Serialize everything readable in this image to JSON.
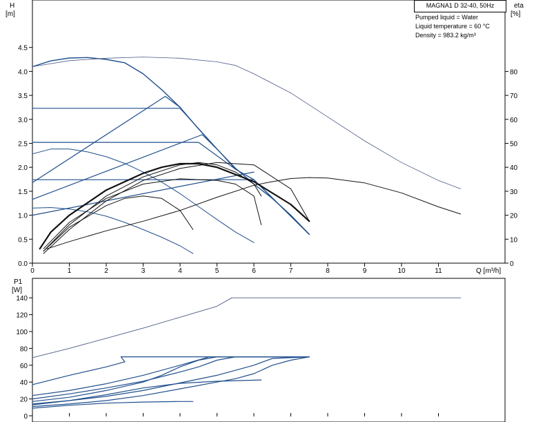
{
  "header": {
    "model": "MAGNA1 D 32-40, 50Hz",
    "info": [
      "Pumped liquid = Water",
      "Liquid temperature = 60 °C",
      "Density = 983.2 kg/m³"
    ]
  },
  "chart_data": [
    {
      "type": "line",
      "panel": "head",
      "ylabel": "H",
      "yunit": "[m]",
      "y2label": "eta",
      "y2unit": "[%]",
      "xlabel": "Q [m³/h]",
      "xlim": [
        0,
        12.5
      ],
      "ylim": [
        0,
        4.75
      ],
      "y2lim": [
        0,
        95
      ],
      "xticks": [
        0,
        1,
        2,
        3,
        4,
        5,
        6,
        7,
        8,
        9,
        10,
        11
      ],
      "yticks": [
        0.0,
        0.5,
        1.0,
        1.5,
        2.0,
        2.5,
        3.0,
        3.5,
        4.0,
        4.5
      ],
      "y2ticks": [
        0,
        10,
        20,
        30,
        40,
        50,
        60,
        70,
        80
      ],
      "grid": false,
      "series": [
        {
          "kind": "head-max",
          "points": [
            [
              0,
              4.1
            ],
            [
              0.5,
              4.22
            ],
            [
              1.0,
              4.28
            ],
            [
              1.5,
              4.29
            ],
            [
              2.0,
              4.25
            ],
            [
              2.5,
              4.18
            ],
            [
              3.0,
              3.95
            ],
            [
              3.5,
              3.62
            ],
            [
              4.0,
              3.25
            ],
            [
              4.5,
              2.8
            ],
            [
              5.0,
              2.38
            ],
            [
              5.5,
              1.98
            ],
            [
              6.0,
              1.65
            ],
            [
              6.5,
              1.35
            ],
            [
              7.0,
              1.0
            ],
            [
              7.5,
              0.6
            ]
          ]
        },
        {
          "kind": "head-speed",
          "points": [
            [
              0,
              2.28
            ],
            [
              0.5,
              2.38
            ],
            [
              1.0,
              2.38
            ],
            [
              1.5,
              2.32
            ],
            [
              2.0,
              2.22
            ],
            [
              2.5,
              2.08
            ],
            [
              3.0,
              1.9
            ],
            [
              3.5,
              1.69
            ],
            [
              4.0,
              1.45
            ],
            [
              4.5,
              1.18
            ],
            [
              5.0,
              0.91
            ],
            [
              5.5,
              0.65
            ],
            [
              6.0,
              0.43
            ]
          ]
        },
        {
          "kind": "head-speed",
          "points": [
            [
              0,
              1.15
            ],
            [
              0.5,
              1.16
            ],
            [
              1.0,
              1.13
            ],
            [
              1.5,
              1.07
            ],
            [
              2.0,
              0.98
            ],
            [
              2.5,
              0.85
            ],
            [
              3.0,
              0.7
            ],
            [
              3.5,
              0.54
            ],
            [
              4.0,
              0.36
            ],
            [
              4.35,
              0.2
            ]
          ]
        },
        {
          "kind": "constant-pressure",
          "points": [
            [
              0,
              3.23
            ],
            [
              4.0,
              3.23
            ],
            [
              5.5,
              1.96
            ],
            [
              6.0,
              1.74
            ],
            [
              7.5,
              0.6
            ]
          ]
        },
        {
          "kind": "constant-pressure",
          "points": [
            [
              0,
              2.52
            ],
            [
              4.5,
              2.52
            ],
            [
              5.5,
              1.96
            ],
            [
              6.0,
              1.74
            ],
            [
              7.5,
              0.6
            ]
          ]
        },
        {
          "kind": "constant-pressure",
          "points": [
            [
              0,
              1.74
            ],
            [
              6.0,
              1.74
            ],
            [
              7.5,
              0.6
            ]
          ]
        },
        {
          "kind": "proportional-pressure",
          "points": [
            [
              0,
              1.68
            ],
            [
              3.6,
              3.48
            ],
            [
              4.0,
              3.25
            ]
          ]
        },
        {
          "kind": "proportional-pressure",
          "points": [
            [
              0,
              1.33
            ],
            [
              4.6,
              2.68
            ],
            [
              5.0,
              2.38
            ]
          ]
        },
        {
          "kind": "proportional-pressure",
          "points": [
            [
              0,
              1.0
            ],
            [
              6.0,
              1.9
            ]
          ]
        },
        {
          "kind": "eta",
          "axis": "y2",
          "points": [
            [
              0,
              82
            ],
            [
              1,
              84.5
            ],
            [
              2,
              85.5
            ],
            [
              3,
              86
            ],
            [
              4,
              85.5
            ],
            [
              5,
              84
            ],
            [
              5.5,
              82.5
            ],
            [
              6,
              79
            ],
            [
              7,
              71
            ],
            [
              8,
              61
            ],
            [
              9,
              51
            ],
            [
              10,
              42
            ],
            [
              11,
              34.5
            ],
            [
              11.6,
              31
            ]
          ]
        },
        {
          "kind": "eta",
          "axis": "y2",
          "points": [
            [
              0.4,
              6
            ],
            [
              1,
              9
            ],
            [
              2,
              13.5
            ],
            [
              3,
              17.5
            ],
            [
              4,
              22
            ],
            [
              5,
              27.5
            ],
            [
              6,
              32.5
            ],
            [
              6.5,
              34
            ],
            [
              7,
              35.3
            ],
            [
              7.5,
              35.7
            ],
            [
              8,
              35.5
            ],
            [
              9,
              33.5
            ],
            [
              10,
              29.3
            ],
            [
              11,
              23.5
            ],
            [
              11.6,
              20.5
            ]
          ]
        },
        {
          "kind": "eta",
          "axis": "y2",
          "bold": true,
          "points": [
            [
              0.2,
              6
            ],
            [
              0.5,
              13
            ],
            [
              1,
              20
            ],
            [
              2,
              30.5
            ],
            [
              3,
              37.5
            ],
            [
              3.5,
              40
            ],
            [
              4,
              41.5
            ],
            [
              4.5,
              41.5
            ],
            [
              5,
              40
            ],
            [
              6,
              34
            ],
            [
              7,
              24.5
            ],
            [
              7.5,
              17.5
            ]
          ]
        },
        {
          "kind": "eta",
          "axis": "y2",
          "points": [
            [
              0.3,
              6
            ],
            [
              1,
              17
            ],
            [
              2,
              27
            ],
            [
              3,
              33
            ],
            [
              4,
              35.2
            ],
            [
              5,
              34.5
            ],
            [
              5.5,
              33
            ],
            [
              6,
              28
            ],
            [
              6.2,
              16
            ]
          ]
        },
        {
          "kind": "eta",
          "axis": "y2",
          "points": [
            [
              0.3,
              5
            ],
            [
              1,
              16
            ],
            [
              2,
              28
            ],
            [
              3,
              36
            ],
            [
              4,
              41
            ],
            [
              4.5,
              42
            ],
            [
              5,
              41
            ],
            [
              5.5,
              38
            ],
            [
              6,
              33
            ],
            [
              6.2,
              28
            ]
          ]
        },
        {
          "kind": "eta",
          "axis": "y2",
          "points": [
            [
              0.3,
              5
            ],
            [
              1,
              15
            ],
            [
              2,
              24
            ],
            [
              2.5,
              27
            ],
            [
              3,
              28
            ],
            [
              3.5,
              27
            ],
            [
              4,
              22
            ],
            [
              4.35,
              14
            ]
          ]
        },
        {
          "kind": "eta",
          "axis": "y2",
          "points": [
            [
              0.3,
              4
            ],
            [
              1,
              14
            ],
            [
              2,
              26
            ],
            [
              3,
              34.5
            ],
            [
              4,
              39.5
            ],
            [
              5,
              42
            ],
            [
              6,
              41
            ],
            [
              7,
              31
            ],
            [
              7.5,
              17.5
            ]
          ]
        }
      ]
    },
    {
      "type": "line",
      "panel": "power",
      "ylabel": "P1",
      "yunit": "[W]",
      "xlim": [
        0,
        12.5
      ],
      "ylim": [
        0,
        150
      ],
      "yticks": [
        0,
        20,
        40,
        60,
        80,
        100,
        120,
        140
      ],
      "grid": false,
      "series": [
        {
          "kind": "power-max",
          "points": [
            [
              0,
              69
            ],
            [
              1,
              80
            ],
            [
              2,
              92
            ],
            [
              3,
              104
            ],
            [
              4,
              117
            ],
            [
              5,
              130
            ],
            [
              5.4,
              140
            ],
            [
              11.6,
              140
            ]
          ]
        },
        {
          "kind": "power",
          "points": [
            [
              0,
              37
            ],
            [
              1,
              48
            ],
            [
              2,
              58
            ],
            [
              2.5,
              64
            ],
            [
              2.4,
              70
            ],
            [
              7.5,
              70
            ]
          ]
        },
        {
          "kind": "power",
          "points": [
            [
              0,
              24
            ],
            [
              1,
              30
            ],
            [
              2,
              38
            ],
            [
              3,
              48
            ],
            [
              4,
              60
            ],
            [
              4.8,
              70
            ],
            [
              7.5,
              70
            ]
          ]
        },
        {
          "kind": "power",
          "points": [
            [
              0,
              20
            ],
            [
              1,
              26
            ],
            [
              2,
              33
            ],
            [
              3,
              41
            ],
            [
              4,
              52
            ],
            [
              4.5,
              58
            ],
            [
              5,
              66
            ],
            [
              5.5,
              70
            ],
            [
              7.5,
              70
            ]
          ]
        },
        {
          "kind": "power",
          "points": [
            [
              0,
              17
            ],
            [
              1,
              22
            ],
            [
              2,
              30
            ],
            [
              3,
              40
            ],
            [
              3.5,
              48
            ],
            [
              4,
              58
            ],
            [
              4.5,
              66
            ],
            [
              5,
              70
            ],
            [
              7.5,
              70
            ]
          ]
        },
        {
          "kind": "power",
          "points": [
            [
              0,
              14
            ],
            [
              1,
              18
            ],
            [
              2,
              23
            ],
            [
              3,
              30
            ],
            [
              4,
              39
            ],
            [
              5,
              48
            ],
            [
              6,
              60
            ],
            [
              6.5,
              68
            ],
            [
              7.5,
              70
            ]
          ]
        },
        {
          "kind": "power",
          "points": [
            [
              0,
              11
            ],
            [
              1,
              14
            ],
            [
              2,
              18
            ],
            [
              3,
              24
            ],
            [
              4,
              32
            ],
            [
              5,
              40
            ],
            [
              5.5,
              44
            ],
            [
              6,
              50
            ],
            [
              6.5,
              60
            ],
            [
              7,
              66
            ],
            [
              7.5,
              70
            ]
          ]
        },
        {
          "kind": "power",
          "points": [
            [
              0,
              13
            ],
            [
              1,
              18
            ],
            [
              2,
              25
            ],
            [
              3,
              33
            ],
            [
              4,
              38.5
            ],
            [
              5,
              41
            ],
            [
              6.2,
              42.5
            ]
          ]
        },
        {
          "kind": "power",
          "points": [
            [
              0,
              9
            ],
            [
              1,
              12.5
            ],
            [
              2,
              15
            ],
            [
              3,
              16.3
            ],
            [
              4,
              17
            ],
            [
              4.35,
              17
            ]
          ]
        }
      ]
    }
  ]
}
